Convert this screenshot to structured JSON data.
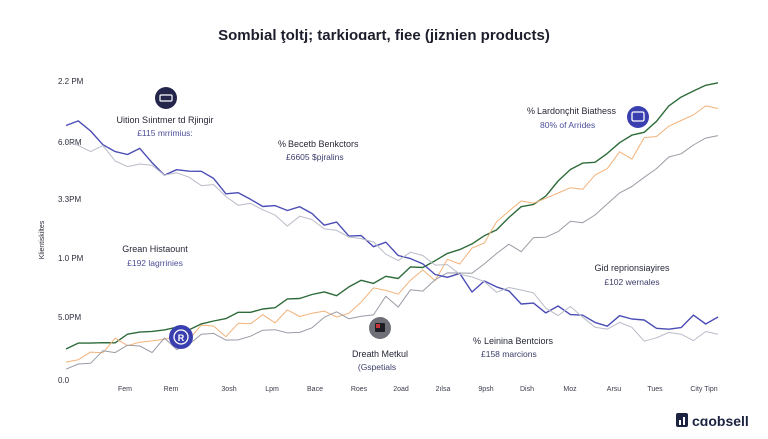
{
  "title": "Sombial ţoltj; tarkioɑart, fiee (jiznien products)",
  "brand": "cɑobsell",
  "chart_data": {
    "type": "line",
    "ylabel": "Klientiskiltes",
    "y_ticks": [
      "2.2 PM",
      "6.0RM",
      "3.3PM",
      "1.0 PM",
      "5.0PM",
      "0.0"
    ],
    "x_ticks": [
      "Fem",
      "Rem",
      "3osh",
      "Lpm",
      "Bace",
      "Roes",
      "2oad",
      "2ılsa",
      "9psh",
      "Dish",
      "Moz",
      "Arsu",
      "Tues",
      "City Tipn"
    ],
    "ylim": [
      0,
      2.2
    ],
    "series": [
      {
        "color": "#2e6b3a",
        "values": [
          0.24,
          0.25,
          0.26,
          0.27,
          0.28,
          0.31,
          0.33,
          0.35,
          0.36,
          0.38,
          0.39,
          0.4,
          0.42,
          0.45,
          0.47,
          0.5,
          0.52,
          0.54,
          0.56,
          0.58,
          0.6,
          0.62,
          0.64,
          0.67,
          0.7,
          0.72,
          0.74,
          0.76,
          0.8,
          0.84,
          0.88,
          0.92,
          0.96,
          1.0,
          1.05,
          1.12,
          1.18,
          1.24,
          1.3,
          1.36,
          1.44,
          1.52,
          1.58,
          1.62,
          1.66,
          1.72,
          1.78,
          1.84,
          1.9,
          1.98,
          2.05,
          2.12,
          2.17,
          2.18
        ]
      },
      {
        "color": "#f2b27a",
        "values": [
          0.2,
          0.21,
          0.22,
          0.22,
          0.23,
          0.24,
          0.26,
          0.27,
          0.28,
          0.3,
          0.31,
          0.33,
          0.34,
          0.36,
          0.37,
          0.38,
          0.4,
          0.42,
          0.44,
          0.46,
          0.48,
          0.5,
          0.52,
          0.55,
          0.58,
          0.61,
          0.64,
          0.68,
          0.72,
          0.76,
          0.8,
          0.86,
          0.92,
          0.98,
          1.05,
          1.12,
          1.2,
          1.26,
          1.3,
          1.34,
          1.38,
          1.42,
          1.46,
          1.5,
          1.55,
          1.6,
          1.66,
          1.7,
          1.76,
          1.82,
          1.88,
          1.96,
          2.02,
          2.05
        ]
      },
      {
        "color": "#9a9ca6",
        "values": [
          0.1,
          0.12,
          0.14,
          0.16,
          0.18,
          0.2,
          0.22,
          0.24,
          0.26,
          0.27,
          0.28,
          0.3,
          0.32,
          0.33,
          0.34,
          0.35,
          0.36,
          0.37,
          0.38,
          0.4,
          0.42,
          0.44,
          0.46,
          0.48,
          0.5,
          0.52,
          0.55,
          0.58,
          0.62,
          0.66,
          0.7,
          0.74,
          0.78,
          0.82,
          0.86,
          0.9,
          0.94,
          0.98,
          1.02,
          1.06,
          1.1,
          1.14,
          1.2,
          1.26,
          1.32,
          1.38,
          1.44,
          1.5,
          1.56,
          1.62,
          1.68,
          1.72,
          1.76,
          1.78
        ]
      },
      {
        "color": "#4b4db5",
        "values": [
          1.9,
          1.86,
          1.82,
          1.78,
          1.72,
          1.68,
          1.64,
          1.6,
          1.56,
          1.54,
          1.52,
          1.5,
          1.46,
          1.42,
          1.38,
          1.34,
          1.3,
          1.28,
          1.26,
          1.22,
          1.18,
          1.14,
          1.1,
          1.06,
          1.02,
          0.98,
          0.95,
          0.92,
          0.88,
          0.84,
          0.8,
          0.76,
          0.72,
          0.7,
          0.68,
          0.66,
          0.62,
          0.58,
          0.55,
          0.52,
          0.5,
          0.48,
          0.46,
          0.44,
          0.43,
          0.42,
          0.42,
          0.41,
          0.4,
          0.4,
          0.42,
          0.44,
          0.46,
          0.48
        ]
      },
      {
        "color": "#b9bcc8",
        "values": [
          1.8,
          1.76,
          1.72,
          1.68,
          1.64,
          1.6,
          1.56,
          1.52,
          1.48,
          1.46,
          1.44,
          1.42,
          1.38,
          1.34,
          1.3,
          1.27,
          1.24,
          1.21,
          1.18,
          1.15,
          1.12,
          1.09,
          1.06,
          1.03,
          1.0,
          0.97,
          0.94,
          0.91,
          0.88,
          0.85,
          0.82,
          0.79,
          0.76,
          0.73,
          0.7,
          0.67,
          0.64,
          0.61,
          0.58,
          0.55,
          0.52,
          0.49,
          0.46,
          0.43,
          0.4,
          0.37,
          0.35,
          0.33,
          0.31,
          0.3,
          0.29,
          0.3,
          0.32,
          0.34
        ]
      }
    ]
  },
  "annotations": {
    "a1": {
      "title": "Uition Sıintmer td Rjingir",
      "sub": "£115 mrrimius:"
    },
    "a2": {
      "title": "Becetb Benkctors",
      "sub": "£6605  $pjralins"
    },
    "a3": {
      "title": "Lardonçhit Biathess",
      "sub": "80% of Arrides"
    },
    "a4": {
      "title": "Grean Histaount",
      "sub": "£192 lagrrinies"
    },
    "a5": {
      "title": "Gid reprionsiayires",
      "sub": "£102 wernales"
    },
    "a6": {
      "title": "Dreath Metkul",
      "sub": "(Gspetials"
    },
    "a7": {
      "title": "Leinina Bentciors",
      "sub": "£158 marcions"
    }
  }
}
